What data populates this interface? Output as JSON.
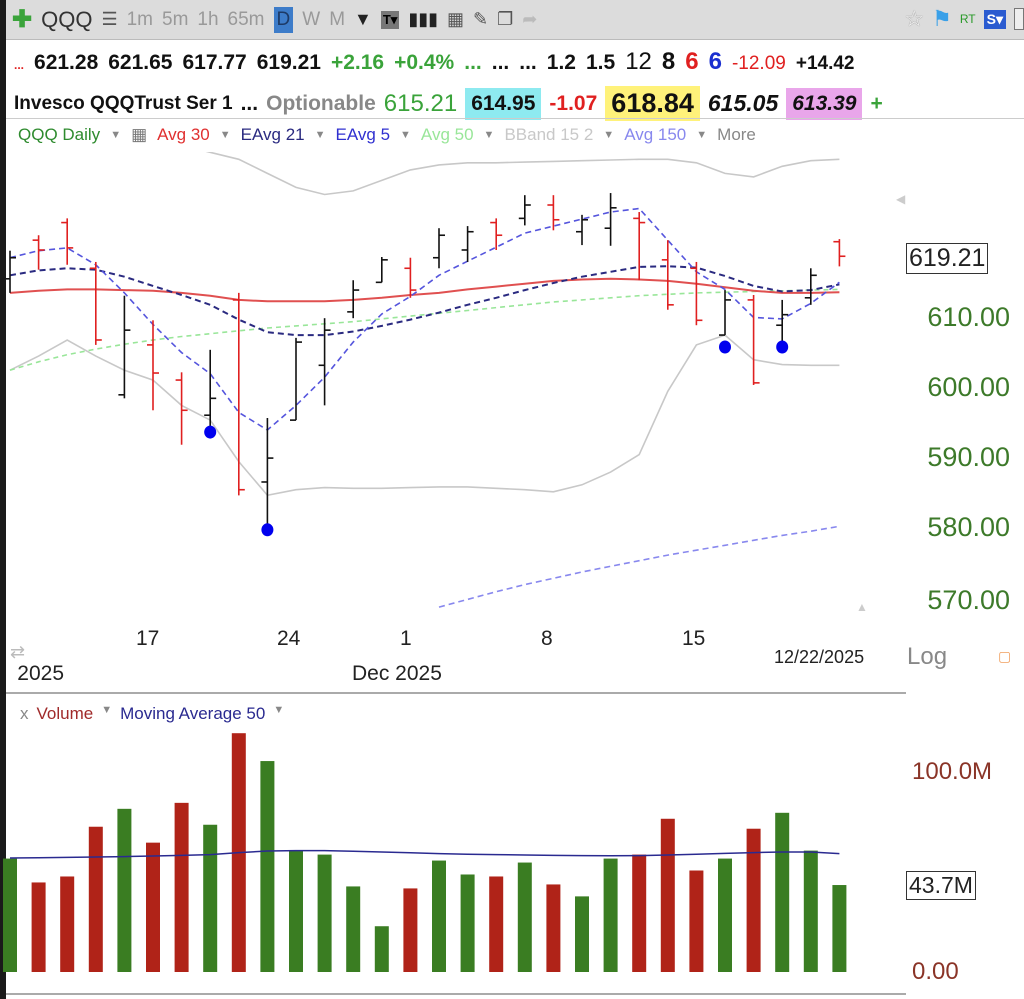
{
  "toolbar": {
    "symbol": "QQQ",
    "intervals": [
      "1m",
      "5m",
      "1h",
      "65m",
      "D",
      "W",
      "M"
    ],
    "selected_interval": "D",
    "right": {
      "rt": "RT",
      "s": "S▾"
    }
  },
  "quote_row1": {
    "prefix": "...",
    "open": "621.28",
    "high": "621.65",
    "low": "617.77",
    "last": "619.21",
    "change": "+2.16",
    "change_pct": "+0.4%",
    "dots1": "...",
    "dots2": "...",
    "dots3": "...",
    "v1": "1.2",
    "v2": "1.5",
    "v3": "12",
    "v4": "8",
    "v5": "6",
    "v6": "6",
    "v7": "-12.09",
    "v8": "+14.42"
  },
  "quote_row2": {
    "name": "Invesco QQQTrust Ser 1",
    "dots": "...",
    "optionable": "Optionable",
    "p1": "615.21",
    "p2": "614.95",
    "p3": "-1.07",
    "p4": "618.84",
    "p5": "615.05",
    "p6": "613.39",
    "p7": "+"
  },
  "legend": {
    "chart": "QQQ Daily",
    "avg30": "Avg 30",
    "eavg21": "EAvg 21",
    "eavg5": "EAvg 5",
    "avg50": "Avg 50",
    "bband": "BBand 15 2",
    "avg150": "Avg 150",
    "more": "More"
  },
  "price_axis": {
    "labels": [
      "610.00",
      "600.00",
      "590.00",
      "580.00",
      "570.00"
    ],
    "last_price": "619.21",
    "scale": "Log"
  },
  "date_axis": {
    "ticks": [
      "17",
      "24",
      "1",
      "8",
      "15"
    ],
    "months": [
      "2025",
      "Dec 2025"
    ],
    "current_date": "12/22/2025"
  },
  "volume_legend": {
    "close": "x",
    "volume": "Volume",
    "ma": "Moving Average 50"
  },
  "volume_axis": {
    "labels": [
      "100.0M",
      "0.00"
    ],
    "last_volume": "43.7M"
  },
  "colors": {
    "up_bar": "#111111",
    "down_bar": "#e02020",
    "avg30": "#e05050",
    "eavg21": "#2a2a80",
    "eavg5": "#5555dd",
    "avg50": "#99e699",
    "bband": "#c8c8c8",
    "avg150": "#8888ee",
    "vol_up": "#3a7d22",
    "vol_down": "#b02318",
    "vol_ma": "#2a2a90",
    "marker": "#0000ee"
  },
  "chart_data": {
    "type": "ohlc",
    "ylim": [
      565,
      640
    ],
    "bars": [
      {
        "o": 616,
        "h": 620,
        "l": 614,
        "c": 619
      },
      {
        "o": 621.5,
        "h": 622.2,
        "l": 617.3,
        "c": 620.1
      },
      {
        "o": 624,
        "h": 624.6,
        "l": 618,
        "c": 620.4
      },
      {
        "o": 617.5,
        "h": 618.4,
        "l": 606.6,
        "c": 607.3
      },
      {
        "o": 599.5,
        "h": 613.6,
        "l": 599,
        "c": 608.7
      },
      {
        "o": 606.6,
        "h": 610.1,
        "l": 597.3,
        "c": 602.6
      },
      {
        "o": 601.6,
        "h": 602.7,
        "l": 592.4,
        "c": 597.3
      },
      {
        "o": 596.6,
        "h": 605.9,
        "l": 594.2,
        "c": 599
      },
      {
        "o": 613,
        "h": 614,
        "l": 585.2,
        "c": 586
      },
      {
        "o": 587.1,
        "h": 596.2,
        "l": 580.3,
        "c": 590.5
      },
      {
        "o": 595.9,
        "h": 607.6,
        "l": 595.9,
        "c": 607
      },
      {
        "o": 603.7,
        "h": 610.4,
        "l": 598,
        "c": 608.7
      },
      {
        "o": 611.3,
        "h": 615.8,
        "l": 610.4,
        "c": 614.4
      },
      {
        "o": 615.5,
        "h": 619.1,
        "l": 615.5,
        "c": 618.7
      },
      {
        "o": 617.5,
        "h": 619,
        "l": 613.3,
        "c": 614.4
      },
      {
        "o": 619,
        "h": 623.2,
        "l": 617.5,
        "c": 622.2
      },
      {
        "o": 620.1,
        "h": 623.5,
        "l": 618.4,
        "c": 622.7
      },
      {
        "o": 624,
        "h": 624.6,
        "l": 620.1,
        "c": 622.2
      },
      {
        "o": 624.6,
        "h": 627.9,
        "l": 623.6,
        "c": 626.5
      },
      {
        "o": 626.5,
        "h": 627.9,
        "l": 622.9,
        "c": 624.4
      },
      {
        "o": 622.7,
        "h": 625.1,
        "l": 620.8,
        "c": 624.4
      },
      {
        "o": 623.2,
        "h": 628.2,
        "l": 620.7,
        "c": 626.1
      },
      {
        "o": 624.6,
        "h": 625.5,
        "l": 615.8,
        "c": 624
      },
      {
        "o": 618.7,
        "h": 621.5,
        "l": 611.6,
        "c": 612.3
      },
      {
        "o": 617.5,
        "h": 618.4,
        "l": 609.4,
        "c": 610.1
      },
      {
        "o": 608,
        "h": 614.4,
        "l": 608,
        "c": 613
      },
      {
        "o": 613,
        "h": 613.7,
        "l": 600.9,
        "c": 601.2
      },
      {
        "o": 609.4,
        "h": 613,
        "l": 606.2,
        "c": 610.9
      },
      {
        "o": 613.3,
        "h": 617.5,
        "l": 612.3,
        "c": 616.5
      },
      {
        "o": 621.28,
        "h": 621.65,
        "l": 617.77,
        "c": 619.21
      }
    ],
    "markers": [
      {
        "bar": 8,
        "price": 594.2
      },
      {
        "bar": 10,
        "price": 580.3
      },
      {
        "bar": 26,
        "price": 606.3
      },
      {
        "bar": 28,
        "price": 606.3
      }
    ],
    "series": [
      {
        "name": "Avg 30",
        "values": [
          614.0,
          614.3,
          614.5,
          614.5,
          614.4,
          614.3,
          614.0,
          613.6,
          613.0,
          612.8,
          612.8,
          612.8,
          613.0,
          613.3,
          613.7,
          614.0,
          614.5,
          614.9,
          615.3,
          615.7,
          615.9,
          616.0,
          615.9,
          615.7,
          615.3,
          614.8,
          614.3,
          614.0,
          614.0,
          614.1
        ]
      },
      {
        "name": "EAvg 21",
        "values": [
          616.5,
          617.2,
          617.5,
          617.3,
          616.3,
          615.0,
          613.7,
          612.3,
          610.2,
          608.4,
          608.0,
          608.0,
          608.5,
          609.3,
          610.2,
          611.2,
          612.3,
          613.3,
          614.4,
          615.4,
          616.3,
          617.0,
          617.7,
          617.8,
          617.6,
          616.4,
          615.0,
          614.2,
          614.4,
          615.2
        ]
      },
      {
        "name": "EAvg 5",
        "values": [
          619.0,
          620.0,
          620.4,
          618.0,
          614.0,
          609.5,
          605.5,
          602.5,
          597.0,
          594.5,
          598.0,
          602.0,
          607.0,
          611.0,
          613.5,
          616.5,
          618.5,
          620.5,
          622.5,
          623.5,
          624.5,
          625.5,
          626.0,
          621.5,
          617.0,
          614.5,
          610.5,
          610.3,
          612.5,
          615.5
        ]
      },
      {
        "name": "Avg 50",
        "values": [
          603.0,
          604.2,
          605.2,
          606.0,
          606.7,
          607.3,
          607.8,
          608.2,
          608.6,
          609.0,
          609.3,
          609.6,
          609.9,
          610.3,
          610.7,
          611.1,
          611.5,
          611.9,
          612.3,
          612.7,
          613.0,
          613.3,
          613.6,
          613.8,
          614.0,
          614.1,
          614.2,
          614.3,
          614.4,
          614.5
        ]
      },
      {
        "name": "BBand 15 2 upper",
        "values": [
          640,
          640,
          639,
          638,
          637,
          636,
          635,
          634,
          633,
          631,
          629,
          628,
          628.5,
          630,
          631.5,
          632.2,
          632.5,
          632.5,
          632.6,
          632.7,
          632.8,
          632.9,
          633,
          633,
          632.5,
          631,
          630.5,
          632,
          632.8,
          633
        ]
      },
      {
        "name": "BBand 15 2 lower",
        "values": [
          603,
          605,
          607.3,
          605,
          603,
          601.6,
          598,
          595.9,
          590,
          585.2,
          586,
          586.3,
          586.2,
          586.2,
          586.3,
          586.4,
          586.4,
          586.2,
          586,
          585.7,
          586.7,
          588.5,
          591,
          600,
          606.6,
          608,
          604.5,
          603.8,
          603.7,
          603.7
        ]
      },
      {
        "name": "Avg 150",
        "values": [
          null,
          null,
          null,
          null,
          null,
          null,
          null,
          null,
          null,
          null,
          null,
          null,
          null,
          null,
          null,
          569.3,
          570.4,
          571.5,
          572.5,
          573.4,
          574.3,
          575.1,
          575.9,
          576.7,
          577.4,
          578.1,
          578.8,
          579.5,
          580.1,
          580.8
        ]
      }
    ],
    "volume": {
      "unit": "M",
      "values": [
        57,
        45,
        48,
        73,
        82,
        65,
        85,
        74,
        120,
        106,
        61,
        59,
        43,
        23,
        42,
        56,
        49,
        48,
        55,
        44,
        38,
        57,
        59,
        77,
        51,
        57,
        72,
        80,
        61,
        43.7
      ],
      "up": [
        1,
        0,
        0,
        0,
        1,
        0,
        0,
        1,
        0,
        1,
        1,
        1,
        1,
        1,
        0,
        1,
        1,
        0,
        1,
        0,
        1,
        1,
        0,
        0,
        0,
        1,
        0,
        1,
        1,
        1
      ],
      "ma50": [
        57.3,
        57.4,
        57.6,
        57.8,
        58.0,
        58.3,
        58.6,
        59.0,
        60.0,
        60.8,
        61.0,
        61.0,
        60.7,
        60.3,
        59.9,
        59.5,
        59.2,
        59.0,
        58.8,
        58.6,
        58.5,
        58.4,
        58.5,
        58.8,
        59.2,
        59.6,
        60.0,
        60.3,
        60.3,
        59.5
      ],
      "ylim": [
        0,
        125
      ]
    }
  }
}
